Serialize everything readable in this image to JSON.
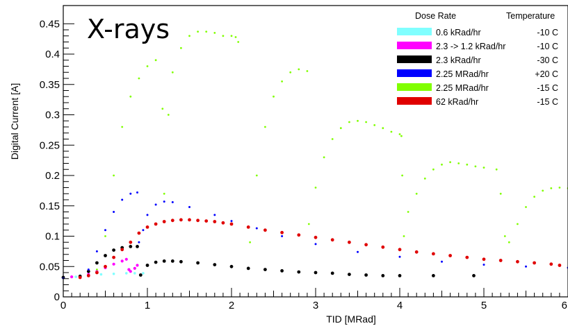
{
  "chart_data": {
    "type": "scatter",
    "title": "X-rays",
    "xlabel": "TID [MRad]",
    "ylabel": "Digital Current [A]",
    "xlim": [
      0,
      6
    ],
    "ylim": [
      0,
      0.48
    ],
    "x_ticks": [
      0,
      1,
      2,
      3,
      4,
      5,
      6
    ],
    "x_tick_labels": [
      "0",
      "1",
      "2",
      "3",
      "4",
      "5",
      "6"
    ],
    "y_ticks": [
      0,
      0.05,
      0.1,
      0.15,
      0.2,
      0.25,
      0.3,
      0.35,
      0.4,
      0.45
    ],
    "y_tick_labels": [
      "0",
      "0.05",
      "0.1",
      "0.15",
      "0.2",
      "0.25",
      "0.3",
      "0.35",
      "0.4",
      "0.45"
    ],
    "grid": false,
    "legend_position": "top-right",
    "legend_headers": {
      "dose_rate": "Dose Rate",
      "temperature": "Temperature"
    },
    "series": [
      {
        "name": "0.6 kRad/hr",
        "temperature": "-10 C",
        "color": "#80ffff",
        "points": [
          [
            0.0,
            0.032
          ],
          [
            0.15,
            0.033
          ],
          [
            0.3,
            0.035
          ],
          [
            0.45,
            0.037
          ],
          [
            0.6,
            0.038
          ],
          [
            0.75,
            0.039
          ],
          [
            0.85,
            0.039
          ],
          [
            0.95,
            0.039
          ]
        ]
      },
      {
        "name": "2.3 -> 1.2 kRad/hr",
        "temperature": "-10 C",
        "color": "#ff00ff",
        "points": [
          [
            0.1,
            0.033
          ],
          [
            0.2,
            0.034
          ],
          [
            0.3,
            0.037
          ],
          [
            0.4,
            0.042
          ],
          [
            0.5,
            0.048
          ],
          [
            0.6,
            0.054
          ],
          [
            0.7,
            0.059
          ],
          [
            0.75,
            0.062
          ],
          [
            0.78,
            0.045
          ],
          [
            0.8,
            0.042
          ],
          [
            0.85,
            0.047
          ],
          [
            0.88,
            0.052
          ]
        ]
      },
      {
        "name": "2.3 kRad/hr",
        "temperature": "-30 C",
        "color": "#000000",
        "points": [
          [
            0.0,
            0.032
          ],
          [
            0.2,
            0.034
          ],
          [
            0.3,
            0.042
          ],
          [
            0.4,
            0.056
          ],
          [
            0.5,
            0.068
          ],
          [
            0.6,
            0.077
          ],
          [
            0.7,
            0.081
          ],
          [
            0.8,
            0.083
          ],
          [
            0.88,
            0.083
          ],
          [
            0.92,
            0.036
          ],
          [
            1.0,
            0.052
          ],
          [
            1.1,
            0.057
          ],
          [
            1.2,
            0.059
          ],
          [
            1.3,
            0.059
          ],
          [
            1.4,
            0.058
          ],
          [
            1.6,
            0.056
          ],
          [
            1.8,
            0.053
          ],
          [
            2.0,
            0.05
          ],
          [
            2.2,
            0.047
          ],
          [
            2.4,
            0.045
          ],
          [
            2.6,
            0.043
          ],
          [
            2.8,
            0.041
          ],
          [
            3.0,
            0.04
          ],
          [
            3.2,
            0.039
          ],
          [
            3.4,
            0.037
          ],
          [
            3.6,
            0.036
          ],
          [
            3.8,
            0.035
          ],
          [
            4.0,
            0.035
          ],
          [
            4.4,
            0.035
          ],
          [
            4.88,
            0.035
          ]
        ]
      },
      {
        "name": "2.25 MRad/hr",
        "temperature": "+20 C",
        "color": "#0000ff",
        "points": [
          [
            0.0,
            0.031
          ],
          [
            0.2,
            0.033
          ],
          [
            0.3,
            0.045
          ],
          [
            0.4,
            0.075
          ],
          [
            0.5,
            0.11
          ],
          [
            0.6,
            0.14
          ],
          [
            0.7,
            0.16
          ],
          [
            0.8,
            0.17
          ],
          [
            0.88,
            0.172
          ],
          [
            0.9,
            0.09
          ],
          [
            0.95,
            0.11
          ],
          [
            1.0,
            0.135
          ],
          [
            1.1,
            0.152
          ],
          [
            1.2,
            0.157
          ],
          [
            1.3,
            0.156
          ],
          [
            1.5,
            0.148
          ],
          [
            1.8,
            0.135
          ],
          [
            2.0,
            0.125
          ],
          [
            2.3,
            0.113
          ],
          [
            2.6,
            0.1
          ],
          [
            3.0,
            0.087
          ],
          [
            3.5,
            0.074
          ],
          [
            4.0,
            0.066
          ],
          [
            4.5,
            0.058
          ],
          [
            5.0,
            0.053
          ],
          [
            5.5,
            0.05
          ],
          [
            6.0,
            0.048
          ]
        ]
      },
      {
        "name": "2.25 MRad/hr",
        "temperature": "-15 C",
        "color": "#80ff00",
        "points": [
          [
            0.4,
            0.045
          ],
          [
            0.5,
            0.1
          ],
          [
            0.6,
            0.2
          ],
          [
            0.7,
            0.28
          ],
          [
            0.8,
            0.33
          ],
          [
            0.9,
            0.36
          ],
          [
            1.0,
            0.38
          ],
          [
            1.1,
            0.39
          ],
          [
            1.15,
            0.44
          ],
          [
            1.18,
            0.31
          ],
          [
            1.2,
            0.17
          ],
          [
            1.25,
            0.3
          ],
          [
            1.3,
            0.37
          ],
          [
            1.4,
            0.41
          ],
          [
            1.5,
            0.43
          ],
          [
            1.6,
            0.437
          ],
          [
            1.7,
            0.437
          ],
          [
            1.8,
            0.435
          ],
          [
            1.9,
            0.43
          ],
          [
            2.0,
            0.43
          ],
          [
            2.05,
            0.428
          ],
          [
            2.08,
            0.42
          ],
          [
            2.22,
            0.09
          ],
          [
            2.3,
            0.2
          ],
          [
            2.4,
            0.28
          ],
          [
            2.5,
            0.33
          ],
          [
            2.6,
            0.355
          ],
          [
            2.7,
            0.37
          ],
          [
            2.8,
            0.375
          ],
          [
            2.9,
            0.372
          ],
          [
            2.92,
            0.12
          ],
          [
            3.0,
            0.18
          ],
          [
            3.1,
            0.23
          ],
          [
            3.2,
            0.26
          ],
          [
            3.3,
            0.278
          ],
          [
            3.4,
            0.288
          ],
          [
            3.5,
            0.29
          ],
          [
            3.6,
            0.288
          ],
          [
            3.7,
            0.283
          ],
          [
            3.8,
            0.278
          ],
          [
            3.9,
            0.272
          ],
          [
            4.0,
            0.268
          ],
          [
            4.02,
            0.265
          ],
          [
            4.03,
            0.2
          ],
          [
            4.05,
            0.1
          ],
          [
            4.1,
            0.14
          ],
          [
            4.2,
            0.17
          ],
          [
            4.3,
            0.195
          ],
          [
            4.4,
            0.21
          ],
          [
            4.5,
            0.218
          ],
          [
            4.6,
            0.222
          ],
          [
            4.7,
            0.22
          ],
          [
            4.8,
            0.218
          ],
          [
            4.9,
            0.215
          ],
          [
            5.0,
            0.213
          ],
          [
            5.15,
            0.21
          ],
          [
            5.2,
            0.17
          ],
          [
            5.25,
            0.1
          ],
          [
            5.3,
            0.09
          ],
          [
            5.4,
            0.12
          ],
          [
            5.5,
            0.148
          ],
          [
            5.6,
            0.165
          ],
          [
            5.7,
            0.175
          ],
          [
            5.8,
            0.179
          ],
          [
            5.9,
            0.18
          ],
          [
            6.0,
            0.179
          ]
        ]
      },
      {
        "name": "62 kRad/hr",
        "temperature": "-15 C",
        "color": "#e00000",
        "points": [
          [
            0.2,
            0.032
          ],
          [
            0.3,
            0.035
          ],
          [
            0.4,
            0.04
          ],
          [
            0.5,
            0.05
          ],
          [
            0.6,
            0.065
          ],
          [
            0.7,
            0.078
          ],
          [
            0.8,
            0.09
          ],
          [
            0.9,
            0.105
          ],
          [
            1.0,
            0.115
          ],
          [
            1.1,
            0.12
          ],
          [
            1.2,
            0.124
          ],
          [
            1.3,
            0.126
          ],
          [
            1.4,
            0.127
          ],
          [
            1.5,
            0.127
          ],
          [
            1.6,
            0.126
          ],
          [
            1.7,
            0.125
          ],
          [
            1.8,
            0.124
          ],
          [
            1.9,
            0.122
          ],
          [
            2.0,
            0.12
          ],
          [
            2.2,
            0.115
          ],
          [
            2.4,
            0.11
          ],
          [
            2.6,
            0.106
          ],
          [
            2.8,
            0.102
          ],
          [
            3.0,
            0.098
          ],
          [
            3.2,
            0.094
          ],
          [
            3.4,
            0.09
          ],
          [
            3.6,
            0.086
          ],
          [
            3.8,
            0.082
          ],
          [
            4.0,
            0.078
          ],
          [
            4.2,
            0.074
          ],
          [
            4.4,
            0.071
          ],
          [
            4.6,
            0.068
          ],
          [
            4.8,
            0.065
          ],
          [
            5.0,
            0.062
          ],
          [
            5.2,
            0.06
          ],
          [
            5.4,
            0.058
          ],
          [
            5.6,
            0.056
          ],
          [
            5.8,
            0.054
          ],
          [
            5.9,
            0.052
          ]
        ]
      }
    ]
  }
}
